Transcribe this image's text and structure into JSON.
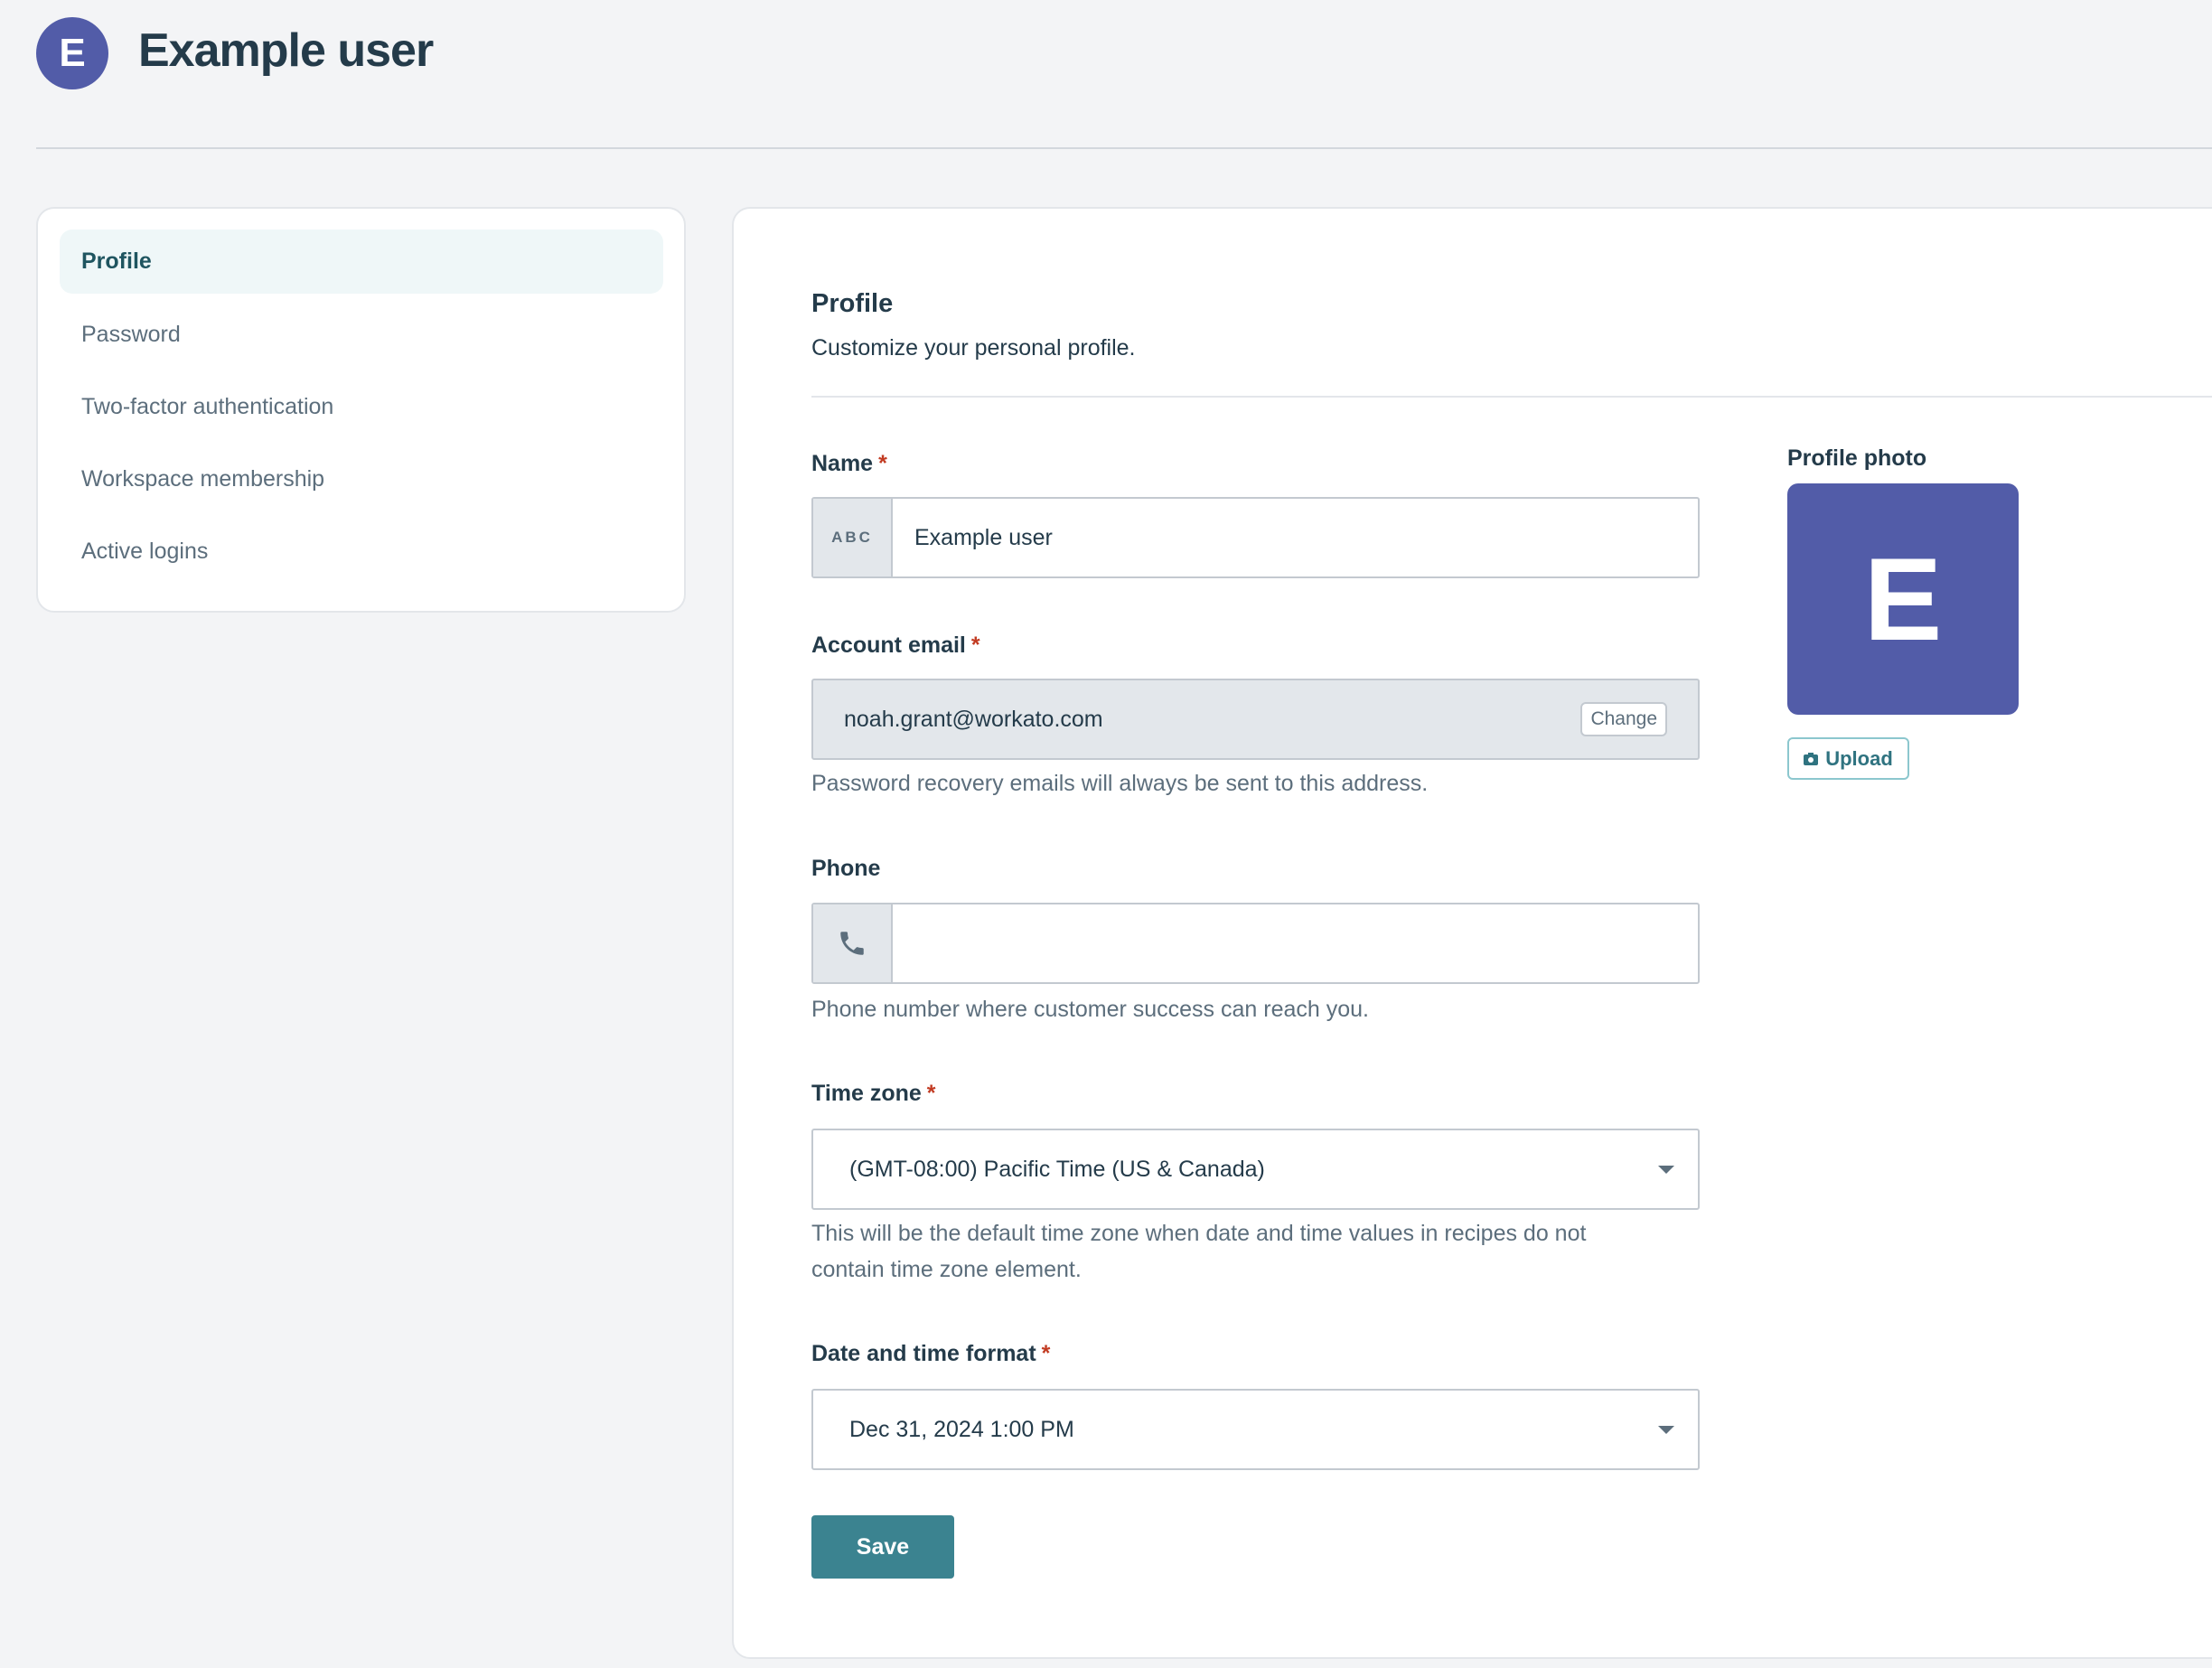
{
  "header": {
    "avatar_letter": "E",
    "title": "Example user"
  },
  "sidebar": {
    "items": [
      {
        "label": "Profile",
        "active": true
      },
      {
        "label": "Password"
      },
      {
        "label": "Two-factor authentication"
      },
      {
        "label": "Workspace membership"
      },
      {
        "label": "Active logins"
      }
    ]
  },
  "main": {
    "heading": "Profile",
    "subtitle": "Customize your personal profile.",
    "name": {
      "label": "Name",
      "required": "*",
      "addon": "ABC",
      "value": "Example user"
    },
    "email": {
      "label": "Account email",
      "required": "*",
      "value": "noah.grant@workato.com",
      "change_label": "Change",
      "hint": "Password recovery emails will always be sent to this address."
    },
    "phone": {
      "label": "Phone",
      "value": "",
      "hint": "Phone number where customer success can reach you.",
      "icon": "phone-icon"
    },
    "timezone": {
      "label": "Time zone",
      "required": "*",
      "value": "(GMT-08:00) Pacific Time (US & Canada)",
      "hint_line1": "This will be the default time zone when date and time values in recipes do not",
      "hint_line2": "contain time zone element."
    },
    "datetime": {
      "label": "Date and time format",
      "required": "*",
      "value": "Dec 31, 2024 1:00 PM"
    },
    "save_label": "Save",
    "photo": {
      "label": "Profile photo",
      "letter": "E",
      "upload_label": "Upload"
    }
  },
  "colors": {
    "accent": "#3b8390",
    "avatar": "#525ca8",
    "required": "#c23b22"
  }
}
